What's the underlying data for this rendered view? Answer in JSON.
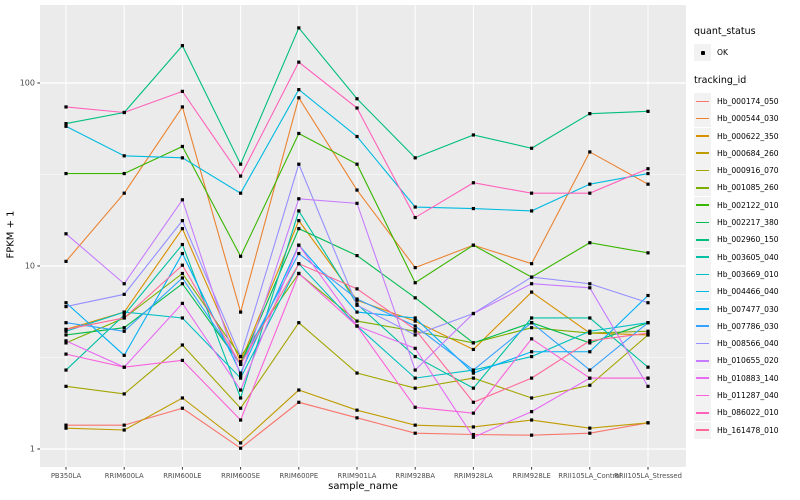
{
  "legend": {
    "quant_status_title": "quant_status",
    "ok_label": "OK",
    "tracking_id_title": "tracking_id"
  },
  "chart": {
    "panel_bg": "#EBEBEB",
    "grid_color": "#FFFFFF",
    "point_color": "#000000",
    "key_bg": "#F2F2F2",
    "y_axis": {
      "major_ticks": [
        {
          "value": 1,
          "label": "1"
        },
        {
          "value": 10,
          "label": "10"
        },
        {
          "value": 100,
          "label": "100"
        }
      ],
      "minor_tick_values": [
        3.1623,
        31.6228
      ]
    }
  },
  "chart_data": {
    "type": "line",
    "title": "",
    "xlabel": "sample_name",
    "ylabel": "FPKM + 1",
    "y_scale": "log10",
    "ylim": [
      0.8,
      234
    ],
    "grid": true,
    "legend_position": "right",
    "categories": [
      "PB350LA",
      "RRIM600LA",
      "RRIM600LE",
      "RRIM600SE",
      "RRIM600PE",
      "RRIM901LA",
      "RRIM928BA",
      "RRIM928LA",
      "RRIM928LE",
      "RRII105LA_Control",
      "RRII105LA_Stressed"
    ],
    "quant_status": "OK",
    "series": [
      {
        "name": "Hb_000174_050",
        "color": "#F8766D",
        "values": [
          1.35,
          1.35,
          1.67,
          1.01,
          1.8,
          1.48,
          1.22,
          1.2,
          1.19,
          1.22,
          1.39
        ]
      },
      {
        "name": "Hb_000544_030",
        "color": "#EA8331",
        "values": [
          10.6,
          25,
          74,
          5.6,
          83,
          26,
          9.8,
          13,
          10.3,
          42,
          28
        ]
      },
      {
        "name": "Hb_000622_350",
        "color": "#D89000",
        "values": [
          4.5,
          5.6,
          16,
          3.0,
          17.7,
          6.5,
          5.0,
          3.5,
          7.2,
          4.3,
          4.2
        ]
      },
      {
        "name": "Hb_000684_260",
        "color": "#C09B00",
        "values": [
          1.3,
          1.27,
          1.9,
          1.08,
          2.1,
          1.63,
          1.35,
          1.32,
          1.44,
          1.3,
          1.39
        ]
      },
      {
        "name": "Hb_000916_070",
        "color": "#A3A500",
        "values": [
          2.2,
          2.0,
          3.7,
          1.67,
          4.9,
          2.6,
          2.15,
          2.44,
          1.9,
          2.23,
          4.2
        ]
      },
      {
        "name": "Hb_001085_260",
        "color": "#7CAE00",
        "values": [
          3.8,
          5.2,
          9.1,
          3.2,
          9.1,
          5.0,
          4.4,
          3.8,
          4.6,
          4.3,
          4.4
        ]
      },
      {
        "name": "Hb_002122_010",
        "color": "#39B600",
        "values": [
          32,
          32,
          45,
          11.3,
          53,
          36,
          8.1,
          13,
          8.7,
          13.4,
          11.8
        ]
      },
      {
        "name": "Hb_002217_380",
        "color": "#00BB4E",
        "values": [
          4.2,
          4.6,
          8.0,
          2.9,
          16,
          11.4,
          6.7,
          3.8,
          4.9,
          3.8,
          4.9
        ]
      },
      {
        "name": "Hb_002960_150",
        "color": "#00BF7D",
        "values": [
          60,
          69,
          160,
          36,
          200,
          82,
          39,
          52,
          44,
          68,
          70
        ]
      },
      {
        "name": "Hb_003605_040",
        "color": "#00C1A3",
        "values": [
          2.7,
          5.4,
          13.1,
          1.9,
          20,
          6.2,
          3.2,
          2.15,
          5.2,
          5.2,
          2.8
        ]
      },
      {
        "name": "Hb_003669_010",
        "color": "#00BFC4",
        "values": [
          4.4,
          5.6,
          5.2,
          2.44,
          10.3,
          4.7,
          2.44,
          2.7,
          3.2,
          4.4,
          4.9
        ]
      },
      {
        "name": "Hb_004466_040",
        "color": "#00BAE0",
        "values": [
          58,
          40,
          39,
          25,
          92,
          51,
          21,
          20.6,
          20,
          28,
          32
        ]
      },
      {
        "name": "Hb_007477_030",
        "color": "#00B0F6",
        "values": [
          6.3,
          3.25,
          11.7,
          2.6,
          13,
          5.6,
          5.2,
          2.6,
          3.4,
          3.4,
          6.9
        ]
      },
      {
        "name": "Hb_007786_030",
        "color": "#35A2FF",
        "values": [
          4.9,
          4.4,
          8.6,
          2.9,
          11.7,
          6.6,
          4.7,
          2.7,
          4.9,
          2.7,
          4.9
        ]
      },
      {
        "name": "Hb_008566_040",
        "color": "#9590FF",
        "values": [
          6.0,
          7.0,
          17.7,
          3.2,
          36,
          6.1,
          4.2,
          5.5,
          8.7,
          8.0,
          6.3
        ]
      },
      {
        "name": "Hb_010655_020",
        "color": "#C77CFF",
        "values": [
          15,
          8.0,
          23,
          2.5,
          23.3,
          22,
          2.7,
          5.5,
          8.0,
          7.6,
          2.2
        ]
      },
      {
        "name": "Hb_010883_140",
        "color": "#E76BF3",
        "values": [
          3.9,
          2.8,
          6.25,
          2.1,
          13,
          4.7,
          3.55,
          1.16,
          1.6,
          2.44,
          2.44
        ]
      },
      {
        "name": "Hb_011287_040",
        "color": "#FA62DB",
        "values": [
          3.3,
          2.8,
          3.05,
          1.44,
          9.1,
          4.7,
          1.69,
          1.57,
          4.0,
          2.44,
          2.44
        ]
      },
      {
        "name": "Hb_086022_010",
        "color": "#FF62BC",
        "values": [
          74,
          69,
          90,
          31,
          130,
          73,
          18.4,
          28.5,
          25,
          25,
          34
        ]
      },
      {
        "name": "Hb_161478_010",
        "color": "#FF6A98",
        "values": [
          4.5,
          5.2,
          10.1,
          2.9,
          10.3,
          7.5,
          4.5,
          1.8,
          2.44,
          3.9,
          4.3
        ]
      }
    ]
  }
}
